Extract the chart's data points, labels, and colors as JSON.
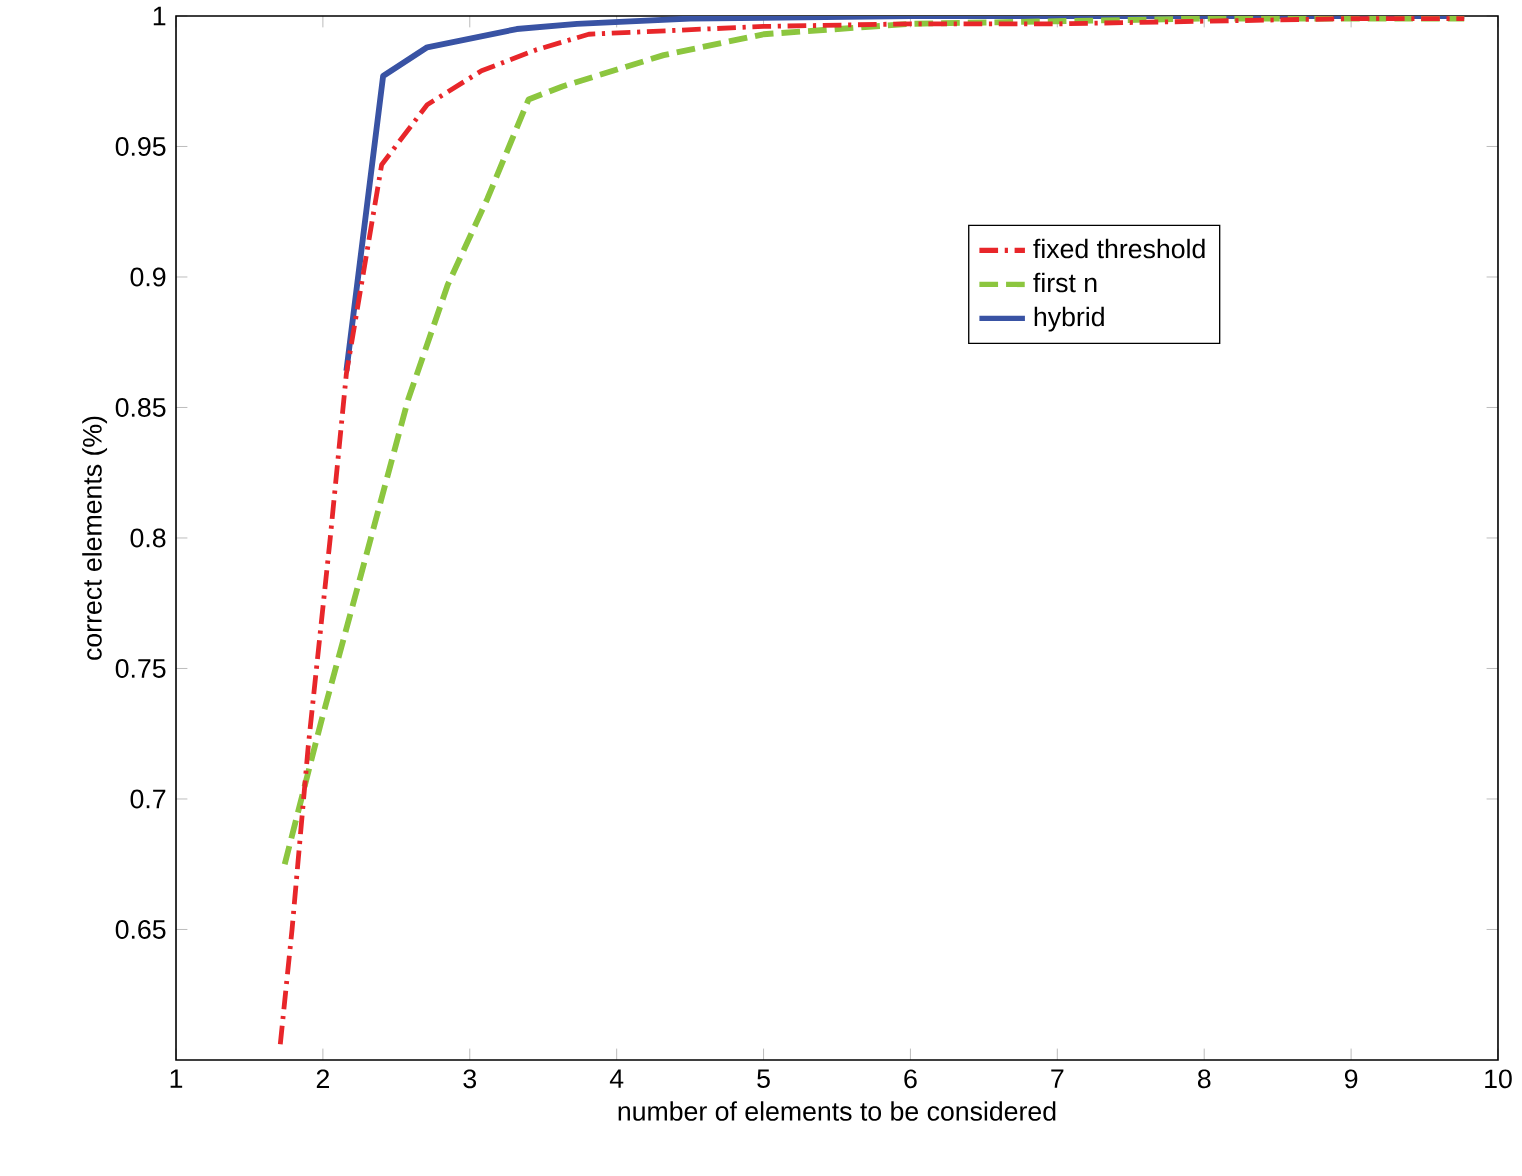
{
  "chart_data": {
    "type": "line",
    "xlabel": "number of elements to be considered",
    "ylabel": "correct elements (%)",
    "xlim": [
      1,
      10
    ],
    "ylim": [
      0.6,
      1
    ],
    "xticks": [
      1,
      2,
      3,
      4,
      5,
      6,
      7,
      8,
      9,
      10
    ],
    "yticks": [
      0.65,
      0.7,
      0.75,
      0.8,
      0.85,
      0.9,
      0.95,
      1
    ],
    "legend": "top right",
    "grid": false,
    "marker": "none",
    "series": [
      {
        "name": "fixed threshold",
        "color": "#e8262a",
        "line_style": "dashdot",
        "x": [
          1.71,
          1.79,
          1.9,
          2.05,
          2.16,
          2.4,
          2.71,
          3.08,
          3.45,
          3.81,
          4.2,
          5,
          6,
          7,
          8,
          9,
          9.77
        ],
        "values": [
          0.606,
          0.65,
          0.72,
          0.8,
          0.863,
          0.943,
          0.966,
          0.979,
          0.987,
          0.993,
          0.994,
          0.996,
          0.997,
          0.997,
          0.998,
          0.999,
          0.999
        ]
      },
      {
        "name": "first n",
        "color": "#8cc63f",
        "line_style": "dashed",
        "x": [
          1.74,
          1.99,
          2.26,
          2.58,
          2.85,
          3.12,
          3.4,
          3.63,
          4.32,
          5,
          6,
          7,
          8,
          9.77
        ],
        "values": [
          0.675,
          0.73,
          0.786,
          0.853,
          0.897,
          0.93,
          0.968,
          0.973,
          0.985,
          0.993,
          0.997,
          0.998,
          0.999,
          0.999
        ]
      },
      {
        "name": "hybrid",
        "color": "#3953a4",
        "line_style": "solid",
        "x": [
          2.16,
          2.41,
          2.71,
          3.32,
          3.73,
          4.5,
          6,
          8,
          9.77
        ],
        "values": [
          0.864,
          0.977,
          0.988,
          0.995,
          0.997,
          0.999,
          1.0,
          1.0,
          1.0
        ]
      }
    ]
  }
}
